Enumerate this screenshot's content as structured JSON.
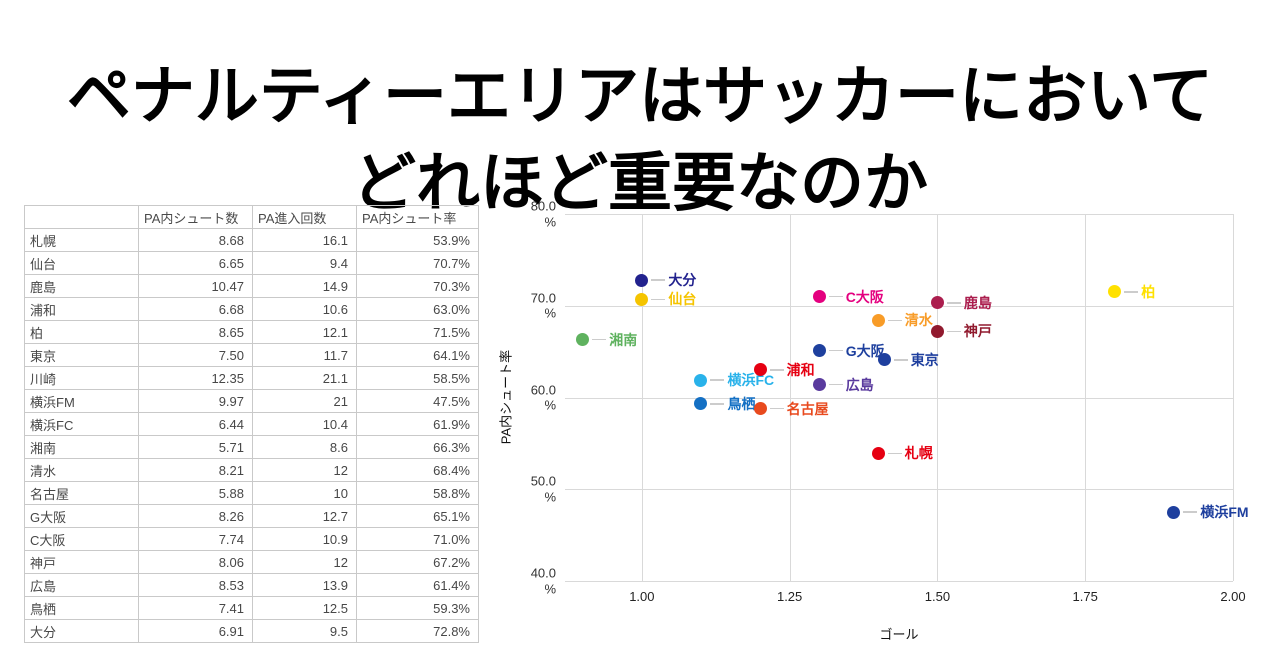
{
  "title": {
    "line1": "ペナルティーエリアはサッカーにおいて",
    "line2": "どれほど重要なのか"
  },
  "table": {
    "columns": [
      "",
      "PA内シュート数",
      "PA進入回数",
      "PA内シュート率"
    ],
    "rows": [
      [
        "札幌",
        "8.68",
        "16.1",
        "53.9%"
      ],
      [
        "仙台",
        "6.65",
        "9.4",
        "70.7%"
      ],
      [
        "鹿島",
        "10.47",
        "14.9",
        "70.3%"
      ],
      [
        "浦和",
        "6.68",
        "10.6",
        "63.0%"
      ],
      [
        "柏",
        "8.65",
        "12.1",
        "71.5%"
      ],
      [
        "東京",
        "7.50",
        "11.7",
        "64.1%"
      ],
      [
        "川崎",
        "12.35",
        "21.1",
        "58.5%"
      ],
      [
        "横浜FM",
        "9.97",
        "21",
        "47.5%"
      ],
      [
        "横浜FC",
        "6.44",
        "10.4",
        "61.9%"
      ],
      [
        "湘南",
        "5.71",
        "8.6",
        "66.3%"
      ],
      [
        "清水",
        "8.21",
        "12",
        "68.4%"
      ],
      [
        "名古屋",
        "5.88",
        "10",
        "58.8%"
      ],
      [
        "G大阪",
        "8.26",
        "12.7",
        "65.1%"
      ],
      [
        "C大阪",
        "7.74",
        "10.9",
        "71.0%"
      ],
      [
        "神戸",
        "8.06",
        "12",
        "67.2%"
      ],
      [
        "広島",
        "8.53",
        "13.9",
        "61.4%"
      ],
      [
        "鳥栖",
        "7.41",
        "12.5",
        "59.3%"
      ],
      [
        "大分",
        "6.91",
        "9.5",
        "72.8%"
      ]
    ]
  },
  "chart_data": {
    "type": "scatter",
    "xlabel": "ゴール",
    "ylabel": "PA内シュート率",
    "xlim": [
      0.87,
      2.0
    ],
    "ylim": [
      40,
      80
    ],
    "grid": true,
    "grid_color": "#d9d9d9",
    "connector_color": "#cccccc",
    "x_ticks": [
      {
        "value": 1.0,
        "label": "1.00"
      },
      {
        "value": 1.25,
        "label": "1.25"
      },
      {
        "value": 1.5,
        "label": "1.50"
      },
      {
        "value": 1.75,
        "label": "1.75"
      },
      {
        "value": 2.0,
        "label": "2.00"
      }
    ],
    "y_ticks": [
      {
        "value": 80,
        "label": "80.0",
        "unit": "%"
      },
      {
        "value": 70,
        "label": "70.0",
        "unit": "%"
      },
      {
        "value": 60,
        "label": "60.0",
        "unit": "%"
      },
      {
        "value": 50,
        "label": "50.0",
        "unit": "%"
      },
      {
        "value": 40,
        "label": "40.0",
        "unit": "%"
      }
    ],
    "points": [
      {
        "label": "湘南",
        "x": 0.9,
        "y": 66.3,
        "color": "#5fb25f"
      },
      {
        "label": "大分",
        "x": 1.0,
        "y": 72.8,
        "color": "#22228e"
      },
      {
        "label": "仙台",
        "x": 1.0,
        "y": 70.7,
        "color": "#f5c400"
      },
      {
        "label": "横浜FC",
        "x": 1.1,
        "y": 61.9,
        "color": "#29b2ea"
      },
      {
        "label": "鳥栖",
        "x": 1.1,
        "y": 59.3,
        "color": "#1470c4"
      },
      {
        "label": "浦和",
        "x": 1.2,
        "y": 63.0,
        "color": "#e60012"
      },
      {
        "label": "名古屋",
        "x": 1.2,
        "y": 58.8,
        "color": "#e84a1e"
      },
      {
        "label": "C大阪",
        "x": 1.3,
        "y": 71.0,
        "color": "#e4007f"
      },
      {
        "label": "G大阪",
        "x": 1.3,
        "y": 65.1,
        "color": "#1e409e"
      },
      {
        "label": "広島",
        "x": 1.3,
        "y": 61.4,
        "color": "#5a3b9e"
      },
      {
        "label": "清水",
        "x": 1.4,
        "y": 68.4,
        "color": "#f89c28"
      },
      {
        "label": "東京",
        "x": 1.41,
        "y": 64.1,
        "color": "#1e3f9e"
      },
      {
        "label": "札幌",
        "x": 1.4,
        "y": 53.9,
        "color": "#e60012"
      },
      {
        "label": "鹿島",
        "x": 1.5,
        "y": 70.3,
        "color": "#ab1e4e"
      },
      {
        "label": "神戸",
        "x": 1.5,
        "y": 67.2,
        "color": "#911a2e"
      },
      {
        "label": "柏",
        "x": 1.8,
        "y": 71.5,
        "color": "#ffe100"
      },
      {
        "label": "横浜FM",
        "x": 1.9,
        "y": 47.5,
        "color": "#1e3f9e"
      }
    ]
  }
}
